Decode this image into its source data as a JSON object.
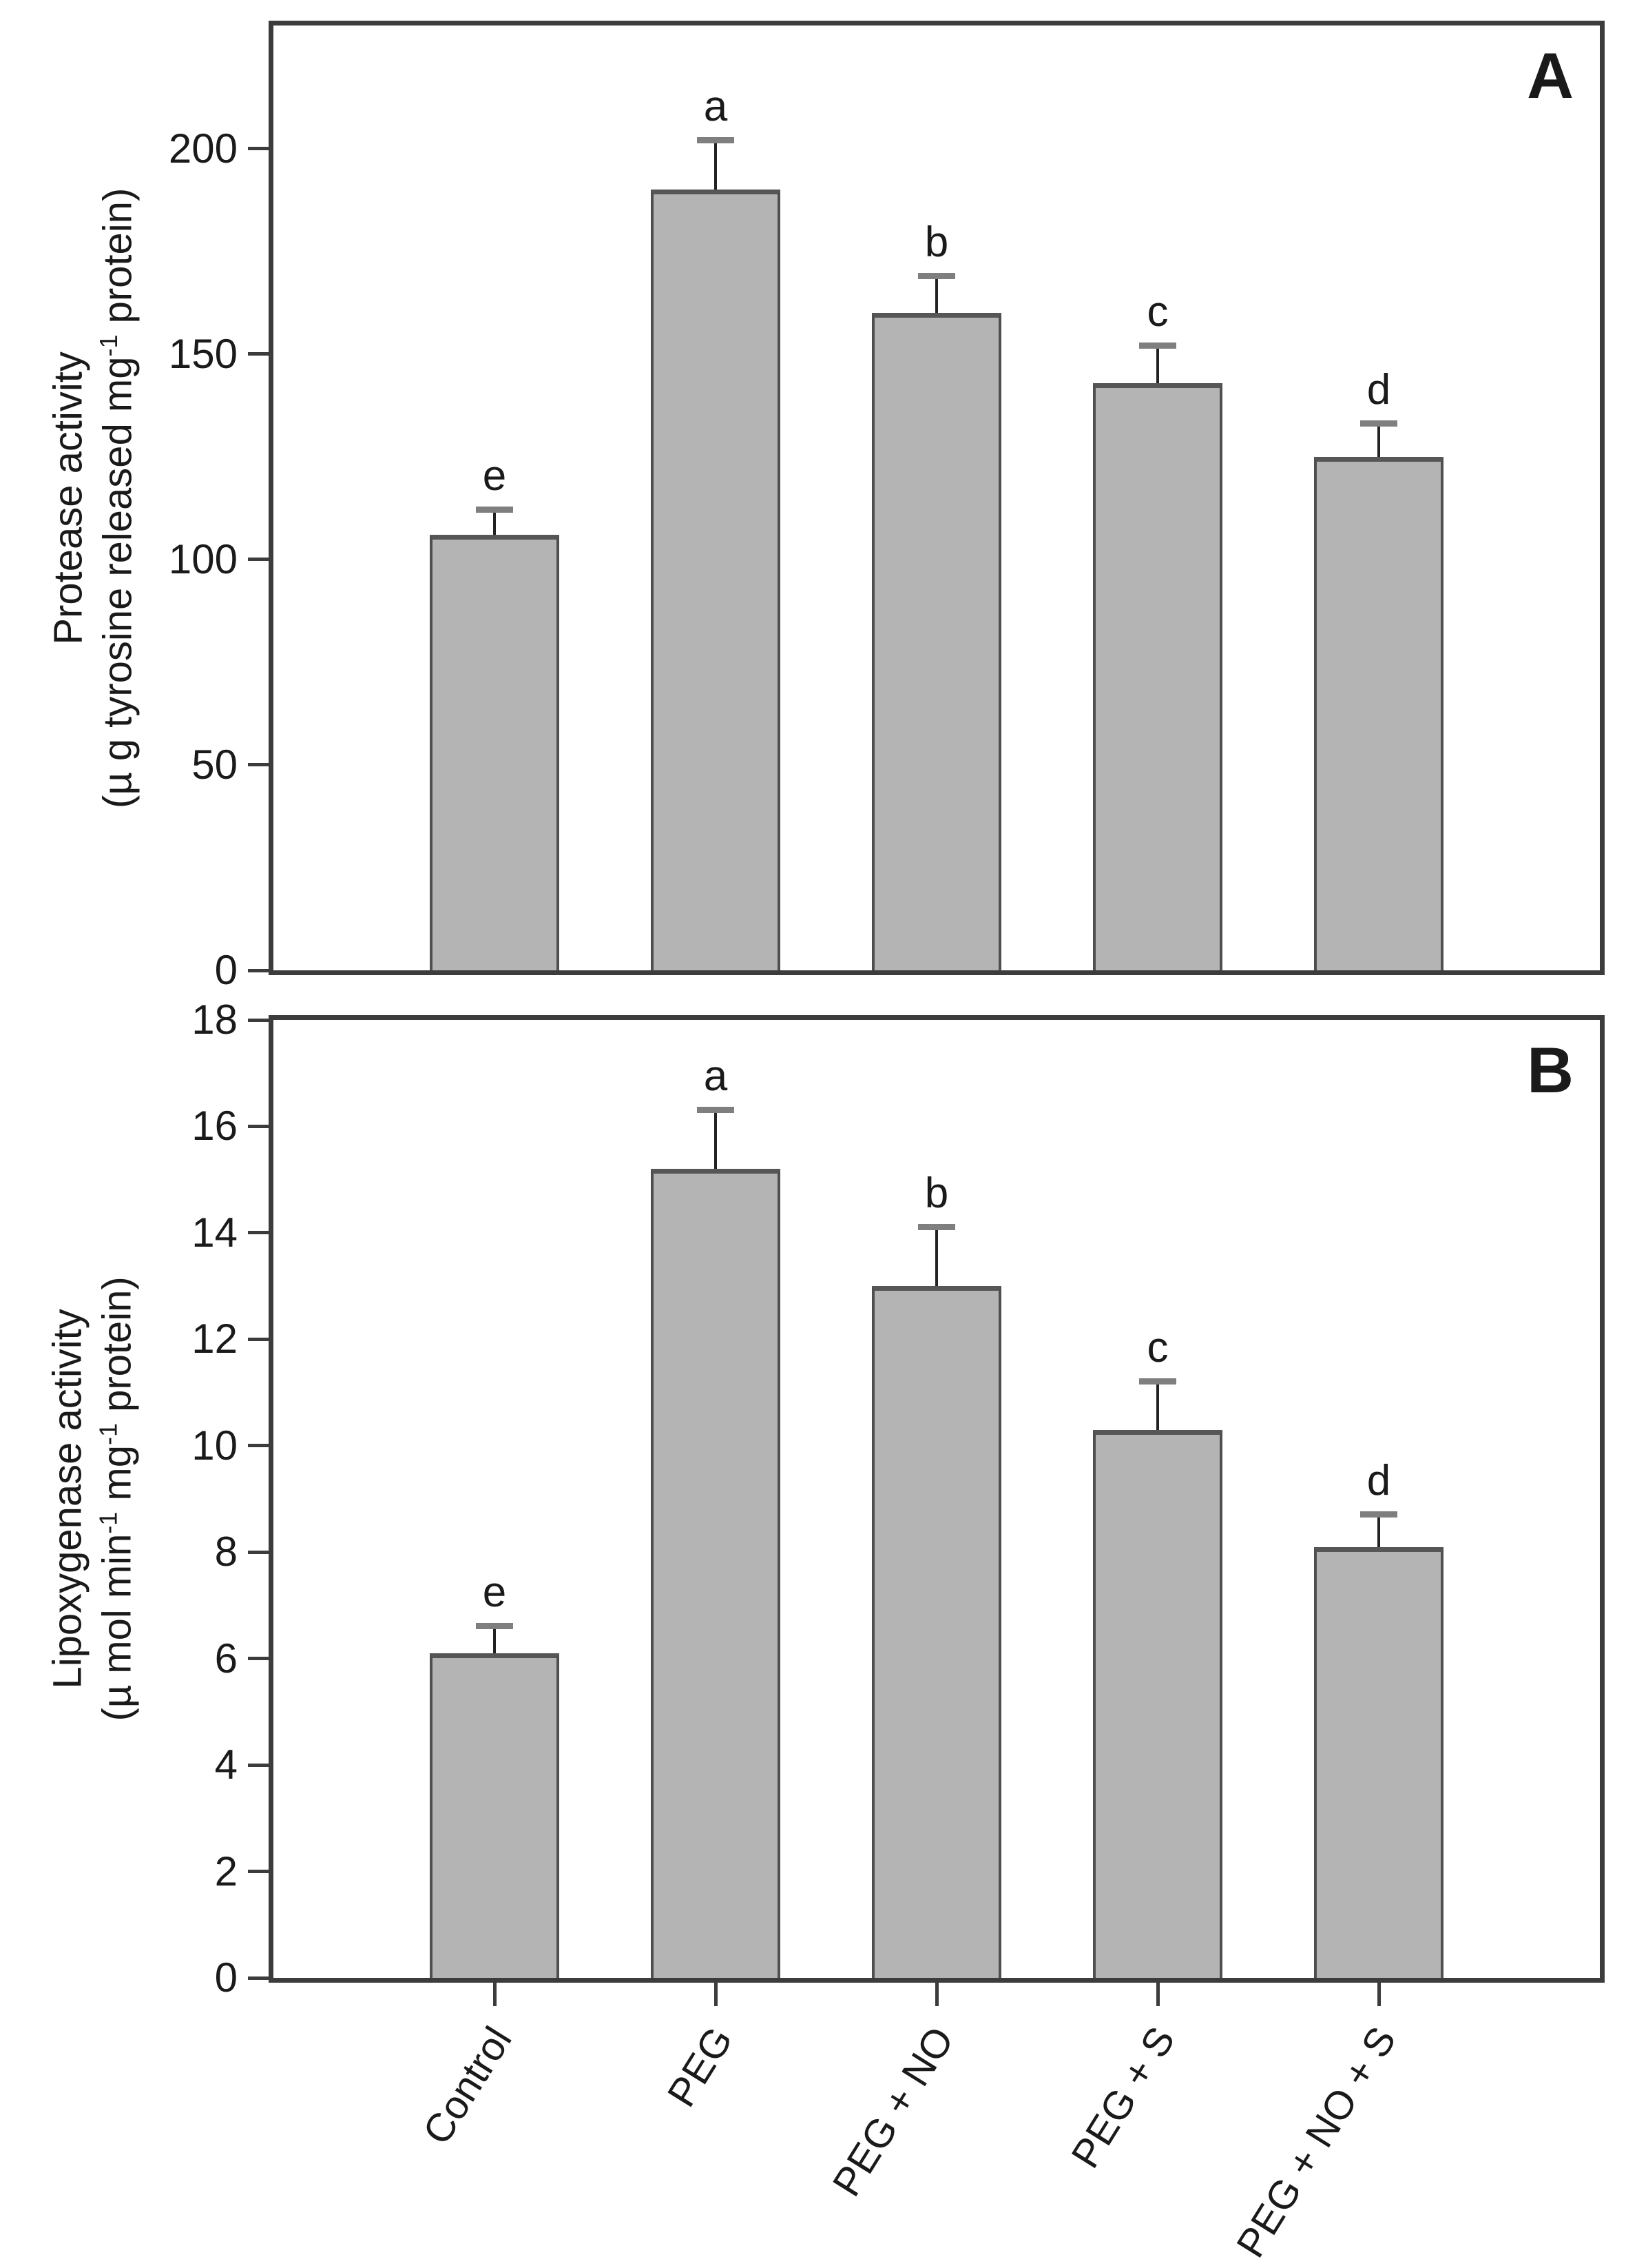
{
  "chart_data": [
    {
      "type": "bar",
      "panel_label": "A",
      "categories": [
        "Control",
        "PEG",
        "PEG + NO",
        "PEG + S",
        "PEG + NO + S"
      ],
      "values": [
        106,
        190,
        160,
        143,
        125
      ],
      "errors_plus": [
        6,
        12,
        9,
        9,
        8
      ],
      "bar_letters": [
        "e",
        "a",
        "b",
        "c",
        "d"
      ],
      "ylabel_line1": "Protease activity",
      "ylabel_line2": "(µ g tyrosine released mg⁻¹ protein)",
      "ylabel_line2_segments": [
        {
          "t": "(µ g tyrosine released mg"
        },
        {
          "t": "-1",
          "sup": true
        },
        {
          "t": " protein)"
        }
      ],
      "xlabel": "",
      "ylim": [
        0,
        230
      ],
      "yticks": [
        0,
        50,
        100,
        150,
        200
      ],
      "grid": false,
      "legend": null,
      "show_x_tick_labels": false
    },
    {
      "type": "bar",
      "panel_label": "B",
      "categories": [
        "Control",
        "PEG",
        "PEG + NO",
        "PEG + S",
        "PEG + NO + S"
      ],
      "values": [
        6.1,
        15.2,
        13.0,
        10.3,
        8.1
      ],
      "errors_plus": [
        0.5,
        1.1,
        1.1,
        0.9,
        0.6
      ],
      "bar_letters": [
        "e",
        "a",
        "b",
        "c",
        "d"
      ],
      "ylabel_line1": "Lipoxygenase activity",
      "ylabel_line2": "(µ mol min⁻¹ mg⁻¹ protein)",
      "ylabel_line2_segments": [
        {
          "t": "(µ mol min"
        },
        {
          "t": "-1",
          "sup": true
        },
        {
          "t": " mg"
        },
        {
          "t": "-1",
          "sup": true
        },
        {
          "t": " protein)"
        }
      ],
      "xlabel": "",
      "ylim": [
        0,
        18
      ],
      "yticks": [
        0,
        2,
        4,
        6,
        8,
        10,
        12,
        14,
        16,
        18
      ],
      "grid": false,
      "legend": null,
      "show_x_tick_labels": true
    }
  ],
  "style": {
    "bar_fill": "#b4b4b4",
    "bar_border": "#4f4f4f",
    "bar_top_edge": "#565656",
    "frame": "#3c3c3c",
    "error_line": "#222222",
    "error_cap": "#7f7f7f",
    "text": "#1a1a1a",
    "background": "#ffffff"
  }
}
